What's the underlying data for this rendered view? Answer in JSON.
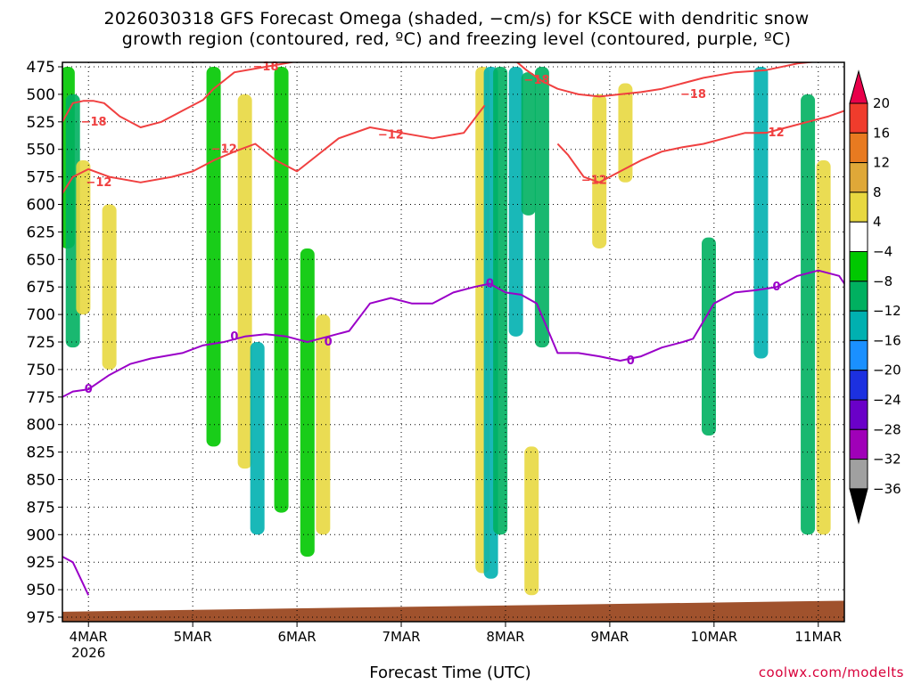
{
  "title_line1": "2026030318 GFS Forecast Omega (shaded, −cm/s) for KSCE with dendritic snow",
  "title_line2": "growth region (contoured, red, ºC) and freezing level (contoured, purple, ºC)",
  "xaxis_label": "Forecast Time (UTC)",
  "credit": "coolwx.com/modelts",
  "chart_data": {
    "type": "heatmap",
    "title": "2026030318 GFS Forecast Omega (shaded, −cm/s) for KSCE with dendritic snow growth region (contoured, red, ºC) and freezing level (contoured, purple, ºC)",
    "xlabel": "Forecast Time (UTC)",
    "ylabel": "",
    "y_axis": {
      "ticks": [
        475,
        500,
        525,
        550,
        575,
        600,
        625,
        650,
        675,
        700,
        725,
        750,
        775,
        800,
        825,
        850,
        875,
        900,
        925,
        950,
        975
      ],
      "range": [
        475,
        975
      ],
      "reversed": true
    },
    "x_axis": {
      "ticks": [
        "4MAR",
        "5MAR",
        "6MAR",
        "7MAR",
        "8MAR",
        "9MAR",
        "10MAR",
        "11MAR"
      ],
      "sub_label": "2026",
      "range_days": [
        3.75,
        11.25
      ]
    },
    "grid": true,
    "colorbar": {
      "levels": [
        20,
        16,
        12,
        8,
        4,
        -4,
        -8,
        -12,
        -16,
        -20,
        -24,
        -28,
        -32,
        -36
      ],
      "colors": [
        "#e8004a",
        "#f03c2c",
        "#e87a20",
        "#dfa838",
        "#e8d840",
        "#ffffff",
        "#00c800",
        "#00b060",
        "#00b0b0",
        "#1a90ff",
        "#1c30e0",
        "#6a00c8",
        "#a000b8",
        "#a0a0a0",
        "#000000"
      ]
    },
    "omega_bands": [
      {
        "day": 3.8,
        "p_top": 475,
        "p_bot": 640,
        "value": -6
      },
      {
        "day": 3.85,
        "p_top": 500,
        "p_bot": 730,
        "value": -8
      },
      {
        "day": 3.95,
        "p_top": 560,
        "p_bot": 700,
        "value": 6
      },
      {
        "day": 4.2,
        "p_top": 600,
        "p_bot": 750,
        "value": 5
      },
      {
        "day": 5.2,
        "p_top": 475,
        "p_bot": 820,
        "value": -6
      },
      {
        "day": 5.5,
        "p_top": 500,
        "p_bot": 840,
        "value": 5
      },
      {
        "day": 5.62,
        "p_top": 725,
        "p_bot": 900,
        "value": -12
      },
      {
        "day": 5.85,
        "p_top": 475,
        "p_bot": 880,
        "value": -6
      },
      {
        "day": 6.1,
        "p_top": 640,
        "p_bot": 920,
        "value": -6
      },
      {
        "day": 6.25,
        "p_top": 700,
        "p_bot": 900,
        "value": 6
      },
      {
        "day": 7.78,
        "p_top": 475,
        "p_bot": 935,
        "value": 8
      },
      {
        "day": 7.86,
        "p_top": 475,
        "p_bot": 940,
        "value": -12
      },
      {
        "day": 7.95,
        "p_top": 475,
        "p_bot": 900,
        "value": -8
      },
      {
        "day": 8.1,
        "p_top": 475,
        "p_bot": 720,
        "value": -14
      },
      {
        "day": 8.22,
        "p_top": 480,
        "p_bot": 610,
        "value": -8
      },
      {
        "day": 8.25,
        "p_top": 820,
        "p_bot": 955,
        "value": 6
      },
      {
        "day": 8.35,
        "p_top": 475,
        "p_bot": 730,
        "value": -8
      },
      {
        "day": 8.9,
        "p_top": 500,
        "p_bot": 640,
        "value": 8
      },
      {
        "day": 9.15,
        "p_top": 490,
        "p_bot": 580,
        "value": 5
      },
      {
        "day": 9.95,
        "p_top": 630,
        "p_bot": 810,
        "value": -8
      },
      {
        "day": 10.45,
        "p_top": 475,
        "p_bot": 740,
        "value": -14
      },
      {
        "day": 10.9,
        "p_top": 500,
        "p_bot": 900,
        "value": -10
      },
      {
        "day": 11.05,
        "p_top": 560,
        "p_bot": 900,
        "value": 6
      }
    ],
    "series": [
      {
        "name": "-18",
        "label_text": "−18",
        "color": "#f04040",
        "type": "contour",
        "x": [
          3.75,
          3.85,
          3.95,
          4.05,
          4.15,
          4.3,
          4.5,
          4.7,
          4.9,
          5.1,
          5.2,
          5.4,
          5.7,
          6.0,
          6.3,
          6.6
        ],
        "y": [
          525,
          508,
          506,
          506,
          508,
          520,
          530,
          525,
          515,
          505,
          495,
          480,
          475,
          470,
          470,
          468
        ]
      },
      {
        "name": "-18",
        "label_text": "−18",
        "color": "#f04040",
        "type": "contour",
        "x": [
          8.1,
          8.2,
          8.35,
          8.5,
          8.7,
          8.9,
          9.1,
          9.3,
          9.5,
          9.7,
          9.9,
          10.2,
          10.5,
          10.8,
          11.0,
          11.25
        ],
        "y": [
          470,
          478,
          488,
          495,
          500,
          502,
          500,
          498,
          495,
          490,
          485,
          480,
          478,
          472,
          470,
          468
        ]
      },
      {
        "name": "-12",
        "label_text": "−12",
        "color": "#f04040",
        "type": "contour",
        "x": [
          3.75,
          3.85,
          4.0,
          4.2,
          4.5,
          4.8,
          5.0,
          5.2,
          5.4,
          5.6,
          5.8,
          6.0,
          6.2,
          6.4,
          6.7,
          7.0,
          7.3,
          7.6,
          7.8
        ],
        "y": [
          590,
          575,
          568,
          575,
          580,
          575,
          570,
          560,
          552,
          545,
          560,
          570,
          555,
          540,
          530,
          535,
          540,
          535,
          510
        ]
      },
      {
        "name": "-12",
        "label_text": "−12",
        "color": "#f04040",
        "type": "contour",
        "x": [
          8.5,
          8.6,
          8.75,
          8.9,
          9.1,
          9.3,
          9.5,
          9.7,
          9.9,
          10.1,
          10.3,
          10.5,
          10.7,
          10.9,
          11.1,
          11.25
        ],
        "y": [
          545,
          555,
          575,
          580,
          570,
          560,
          552,
          548,
          545,
          540,
          535,
          535,
          530,
          525,
          520,
          515
        ]
      },
      {
        "name": "0",
        "label_text": "0",
        "color": "#9a00c8",
        "type": "contour",
        "x": [
          3.75,
          3.85,
          4.0,
          4.2,
          4.4,
          4.6,
          4.9,
          5.1,
          5.3,
          5.5,
          5.7,
          5.9,
          6.1,
          6.3,
          6.5,
          6.7,
          6.9,
          7.1,
          7.3,
          7.5,
          7.7,
          7.85,
          8.0,
          8.15,
          8.3,
          8.5,
          8.7,
          8.9,
          9.1,
          9.3,
          9.5,
          9.7,
          9.8,
          10.0,
          10.2,
          10.4,
          10.6,
          10.8,
          11.0,
          11.2,
          11.25
        ],
        "y": [
          775,
          770,
          768,
          755,
          745,
          740,
          735,
          728,
          725,
          720,
          718,
          720,
          725,
          720,
          715,
          690,
          685,
          690,
          690,
          680,
          675,
          672,
          680,
          682,
          690,
          735,
          735,
          738,
          742,
          738,
          730,
          725,
          722,
          690,
          680,
          678,
          675,
          665,
          660,
          665,
          672
        ]
      },
      {
        "name": "0 (surface)",
        "label_text": "",
        "color": "#9a00c8",
        "type": "contour",
        "x": [
          3.75,
          3.85,
          3.95,
          4.0
        ],
        "y": [
          920,
          925,
          945,
          955
        ]
      }
    ],
    "contour_labels": [
      {
        "text": "−18",
        "day": 4.05,
        "p": 525
      },
      {
        "text": "−18",
        "day": 5.7,
        "p": 475
      },
      {
        "text": "−18",
        "day": 8.3,
        "p": 487
      },
      {
        "text": "−18",
        "day": 9.8,
        "p": 500
      },
      {
        "text": "−12",
        "day": 4.1,
        "p": 580
      },
      {
        "text": "−12",
        "day": 5.3,
        "p": 550
      },
      {
        "text": "−12",
        "day": 6.9,
        "p": 537
      },
      {
        "text": "−12",
        "day": 8.85,
        "p": 578
      },
      {
        "text": "−12",
        "day": 10.55,
        "p": 535
      },
      {
        "text": "0",
        "day": 4.0,
        "p": 768
      },
      {
        "text": "0",
        "day": 5.4,
        "p": 720
      },
      {
        "text": "0",
        "day": 6.3,
        "p": 725
      },
      {
        "text": "0",
        "day": 7.85,
        "p": 672
      },
      {
        "text": "0",
        "day": 9.2,
        "p": 742
      },
      {
        "text": "0",
        "day": 10.6,
        "p": 675
      }
    ],
    "terrain": {
      "color": "#a0522d",
      "p_top_start": 970,
      "p_top_end": 960
    }
  }
}
